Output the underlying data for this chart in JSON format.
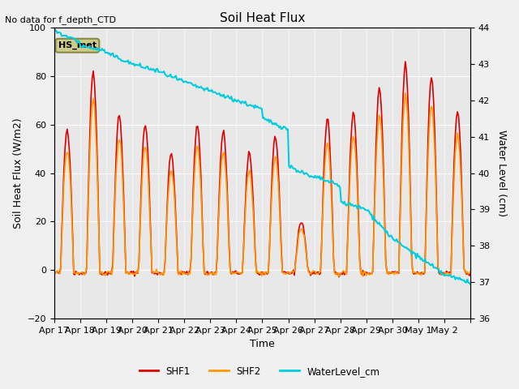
{
  "title": "Soil Heat Flux",
  "subtitle": "No data for f_depth_CTD",
  "xlabel": "Time",
  "ylabel_left": "Soil Heat Flux (W/m2)",
  "ylabel_right": "Water Level (cm)",
  "ylim_left": [
    -20,
    100
  ],
  "ylim_right": [
    36.0,
    44.0
  ],
  "yticks_left": [
    -20,
    0,
    20,
    40,
    60,
    80,
    100
  ],
  "yticks_right": [
    36.0,
    37.0,
    38.0,
    39.0,
    40.0,
    41.0,
    42.0,
    43.0,
    44.0
  ],
  "xtick_positions": [
    0,
    1,
    2,
    3,
    4,
    5,
    6,
    7,
    8,
    9,
    10,
    11,
    12,
    13,
    14,
    15,
    16
  ],
  "xtick_labels": [
    "Apr 17",
    "Apr 18",
    "Apr 19",
    "Apr 20",
    "Apr 21",
    "Apr 22",
    "Apr 23",
    "Apr 24",
    "Apr 25",
    "Apr 26",
    "Apr 27",
    "Apr 28",
    "Apr 29",
    "Apr 30",
    "May 1",
    "May 2",
    ""
  ],
  "color_shf1": "#dd0000",
  "color_shf2": "#ff9900",
  "color_water": "#00ccdd",
  "color_background": "#e8e8e8",
  "legend_label1": "SHF1",
  "legend_label2": "SHF2",
  "legend_label3": "WaterLevel_cm",
  "hs_met_label": "HS_met",
  "linewidth_shf": 1.2,
  "linewidth_water": 1.5
}
